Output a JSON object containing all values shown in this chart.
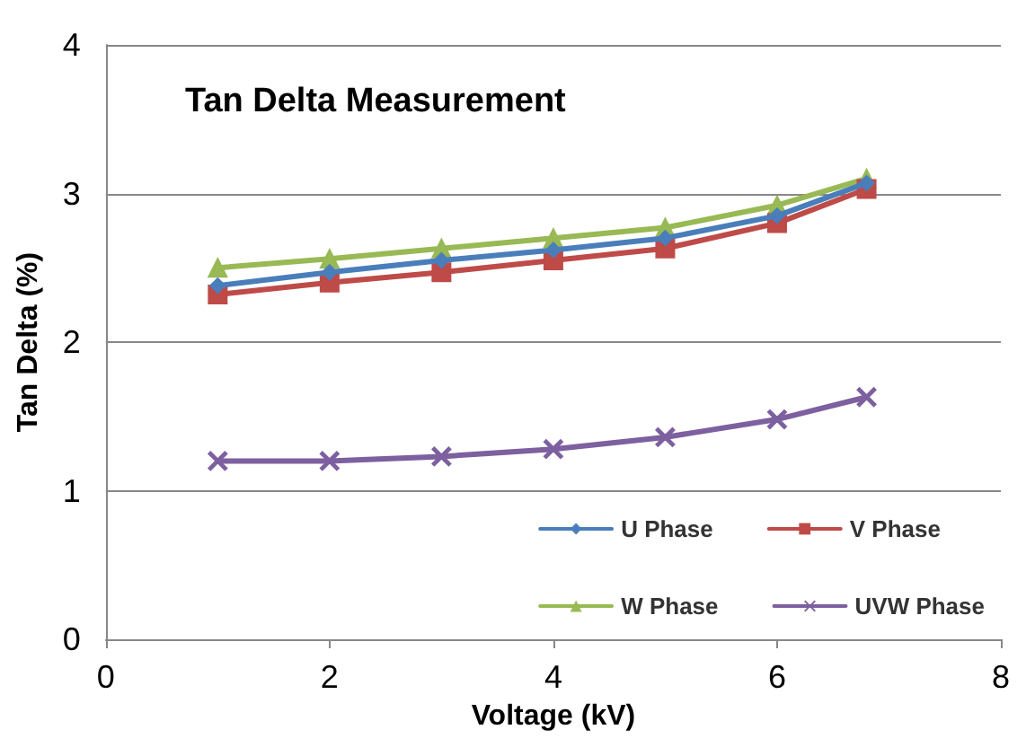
{
  "chart_data": {
    "type": "line",
    "title": "Tan Delta Measurement",
    "xlabel": "Voltage (kV)",
    "ylabel": "Tan Delta (%)",
    "x": [
      1,
      2,
      3,
      4,
      5,
      6,
      6.8
    ],
    "series": [
      {
        "name": "U Phase",
        "color": "#4a7ebb",
        "marker": "diamond",
        "values": [
          2.38,
          2.47,
          2.55,
          2.62,
          2.7,
          2.85,
          3.07
        ]
      },
      {
        "name": "V Phase",
        "color": "#be4b48",
        "marker": "square",
        "values": [
          2.32,
          2.4,
          2.47,
          2.55,
          2.63,
          2.8,
          3.03
        ]
      },
      {
        "name": "W Phase",
        "color": "#98b954",
        "marker": "triangle",
        "values": [
          2.5,
          2.56,
          2.63,
          2.7,
          2.77,
          2.92,
          3.1
        ]
      },
      {
        "name": "UVW Phase",
        "color": "#7d60a0",
        "marker": "cross",
        "values": [
          1.2,
          1.2,
          1.23,
          1.28,
          1.36,
          1.48,
          1.63
        ]
      }
    ],
    "xlim": [
      0,
      8
    ],
    "xticks": [
      0,
      2,
      4,
      6,
      8
    ],
    "ylim": [
      0,
      4
    ],
    "yticks": [
      0,
      1,
      2,
      3,
      4
    ],
    "grid": "y",
    "legend": "bottom right"
  }
}
